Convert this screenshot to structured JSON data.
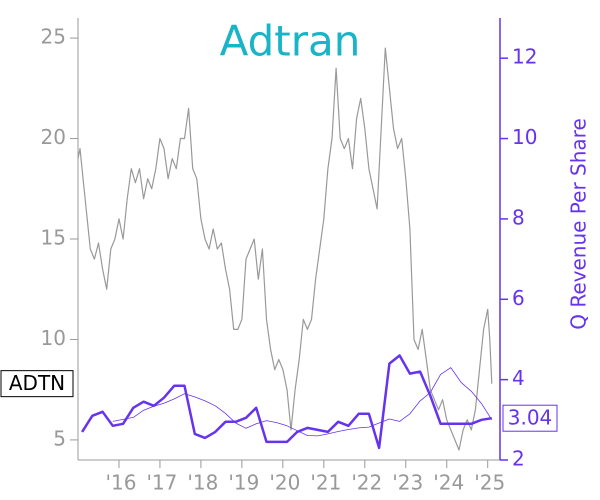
{
  "chart_data": {
    "type": "line",
    "title": "Adtran",
    "y2label": "Q Revenue Per Share",
    "xlim": [
      2015.0,
      2025.3
    ],
    "xticks": [
      {
        "value": 2016,
        "label": "'16"
      },
      {
        "value": 2017,
        "label": "'17"
      },
      {
        "value": 2018,
        "label": "'18"
      },
      {
        "value": 2019,
        "label": "'19"
      },
      {
        "value": 2020,
        "label": "'20"
      },
      {
        "value": 2021,
        "label": "'21"
      },
      {
        "value": 2022,
        "label": "'22"
      },
      {
        "value": 2023,
        "label": "'23"
      },
      {
        "value": 2024,
        "label": "'24"
      },
      {
        "value": 2025,
        "label": "'25"
      }
    ],
    "ylim": [
      4,
      26
    ],
    "yticks": [
      5,
      10,
      15,
      20,
      25
    ],
    "y2lim": [
      2,
      13
    ],
    "y2ticks": [
      2,
      4,
      6,
      8,
      10,
      12
    ],
    "series": [
      {
        "name": "ADTN",
        "color": "#999999",
        "axis": "y",
        "x": [
          2015.0,
          2015.05,
          2015.15,
          2015.3,
          2015.4,
          2015.5,
          2015.6,
          2015.7,
          2015.8,
          2015.9,
          2016.0,
          2016.1,
          2016.2,
          2016.3,
          2016.4,
          2016.5,
          2016.6,
          2016.7,
          2016.8,
          2016.9,
          2017.0,
          2017.1,
          2017.2,
          2017.3,
          2017.4,
          2017.5,
          2017.6,
          2017.7,
          2017.75,
          2017.8,
          2017.9,
          2018.0,
          2018.1,
          2018.2,
          2018.3,
          2018.4,
          2018.5,
          2018.6,
          2018.7,
          2018.8,
          2018.9,
          2019.0,
          2019.1,
          2019.2,
          2019.3,
          2019.4,
          2019.5,
          2019.6,
          2019.7,
          2019.8,
          2019.9,
          2020.0,
          2020.1,
          2020.2,
          2020.3,
          2020.4,
          2020.5,
          2020.6,
          2020.7,
          2020.8,
          2020.9,
          2021.0,
          2021.1,
          2021.2,
          2021.3,
          2021.4,
          2021.5,
          2021.6,
          2021.7,
          2021.8,
          2021.9,
          2022.0,
          2022.1,
          2022.2,
          2022.3,
          2022.4,
          2022.5,
          2022.6,
          2022.7,
          2022.8,
          2022.9,
          2023.0,
          2023.1,
          2023.2,
          2023.3,
          2023.4,
          2023.5,
          2023.6,
          2023.7,
          2023.8,
          2023.9,
          2024.0,
          2024.1,
          2024.2,
          2024.3,
          2024.4,
          2024.5,
          2024.6,
          2024.7,
          2024.8,
          2024.9,
          2025.0,
          2025.05,
          2025.1
        ],
        "values": [
          19.0,
          19.5,
          17.5,
          14.5,
          14.0,
          14.8,
          13.5,
          12.5,
          14.5,
          15.0,
          16.0,
          15.0,
          17.0,
          18.5,
          17.8,
          18.5,
          17.0,
          18.0,
          17.5,
          18.5,
          20.0,
          19.5,
          18.0,
          19.0,
          18.5,
          20.0,
          20.0,
          21.5,
          20.0,
          18.5,
          18.0,
          16.0,
          15.0,
          14.5,
          15.5,
          14.5,
          14.8,
          13.5,
          12.5,
          10.5,
          10.5,
          11.0,
          14.0,
          14.5,
          15.0,
          13.0,
          14.5,
          11.0,
          9.5,
          8.5,
          9.0,
          8.5,
          7.5,
          5.5,
          7.5,
          9.0,
          11.0,
          10.5,
          11.0,
          13.0,
          14.5,
          16.0,
          18.5,
          20.0,
          23.5,
          20.0,
          19.5,
          20.0,
          18.5,
          21.0,
          22.0,
          20.5,
          18.5,
          17.5,
          16.5,
          20.5,
          24.5,
          22.5,
          20.5,
          19.5,
          20.0,
          18.0,
          15.5,
          10.0,
          9.5,
          10.5,
          9.0,
          7.5,
          7.0,
          6.5,
          7.0,
          6.0,
          5.5,
          5.0,
          4.5,
          5.5,
          6.0,
          5.5,
          6.5,
          8.5,
          10.5,
          11.5,
          10.0,
          7.8
        ]
      },
      {
        "color": "#6633ee",
        "axis": "y2",
        "width": 2.5,
        "x": [
          2015.1,
          2015.35,
          2015.6,
          2015.85,
          2016.1,
          2016.35,
          2016.6,
          2016.85,
          2017.1,
          2017.35,
          2017.6,
          2017.85,
          2018.1,
          2018.35,
          2018.6,
          2018.85,
          2019.1,
          2019.35,
          2019.6,
          2019.85,
          2020.1,
          2020.35,
          2020.6,
          2020.85,
          2021.1,
          2021.35,
          2021.6,
          2021.85,
          2022.1,
          2022.35,
          2022.6,
          2022.85,
          2023.1,
          2023.35,
          2023.6,
          2023.85,
          2024.1,
          2024.35,
          2024.6,
          2024.85,
          2025.1
        ],
        "values": [
          2.7,
          3.1,
          3.2,
          2.85,
          2.9,
          3.3,
          3.45,
          3.35,
          3.55,
          3.85,
          3.85,
          2.65,
          2.55,
          2.7,
          2.95,
          2.95,
          3.05,
          3.3,
          2.45,
          2.45,
          2.45,
          2.7,
          2.8,
          2.75,
          2.7,
          2.95,
          2.85,
          3.15,
          3.15,
          2.3,
          4.4,
          4.6,
          4.15,
          4.2,
          3.6,
          2.9,
          2.9,
          2.9,
          2.9,
          3.0,
          3.04
        ]
      },
      {
        "color": "#6633ee",
        "axis": "y2",
        "width": 0.8,
        "x": [
          2015.1,
          2015.35,
          2015.6,
          2015.85,
          2016.1,
          2016.35,
          2016.6,
          2016.85,
          2017.1,
          2017.35,
          2017.6,
          2017.85,
          2018.1,
          2018.35,
          2018.6,
          2018.85,
          2019.1,
          2019.35,
          2019.6,
          2019.85,
          2020.1,
          2020.35,
          2020.6,
          2020.85,
          2021.1,
          2021.35,
          2021.6,
          2021.85,
          2022.1,
          2022.35,
          2022.6,
          2022.85,
          2023.1,
          2023.35,
          2023.6,
          2023.85,
          2024.1,
          2024.35,
          2024.6,
          2024.85,
          2025.1
        ],
        "values": [
          null,
          null,
          null,
          2.96,
          3.01,
          3.06,
          3.24,
          3.34,
          3.41,
          3.52,
          3.65,
          3.57,
          3.47,
          3.35,
          3.16,
          2.92,
          2.79,
          2.9,
          2.98,
          2.93,
          2.85,
          2.73,
          2.61,
          2.6,
          2.65,
          2.71,
          2.76,
          2.8,
          2.82,
          2.92,
          3.02,
          2.96,
          3.15,
          3.47,
          3.68,
          4.13,
          4.3,
          3.93,
          3.71,
          3.4,
          3.0
        ]
      }
    ]
  }
}
